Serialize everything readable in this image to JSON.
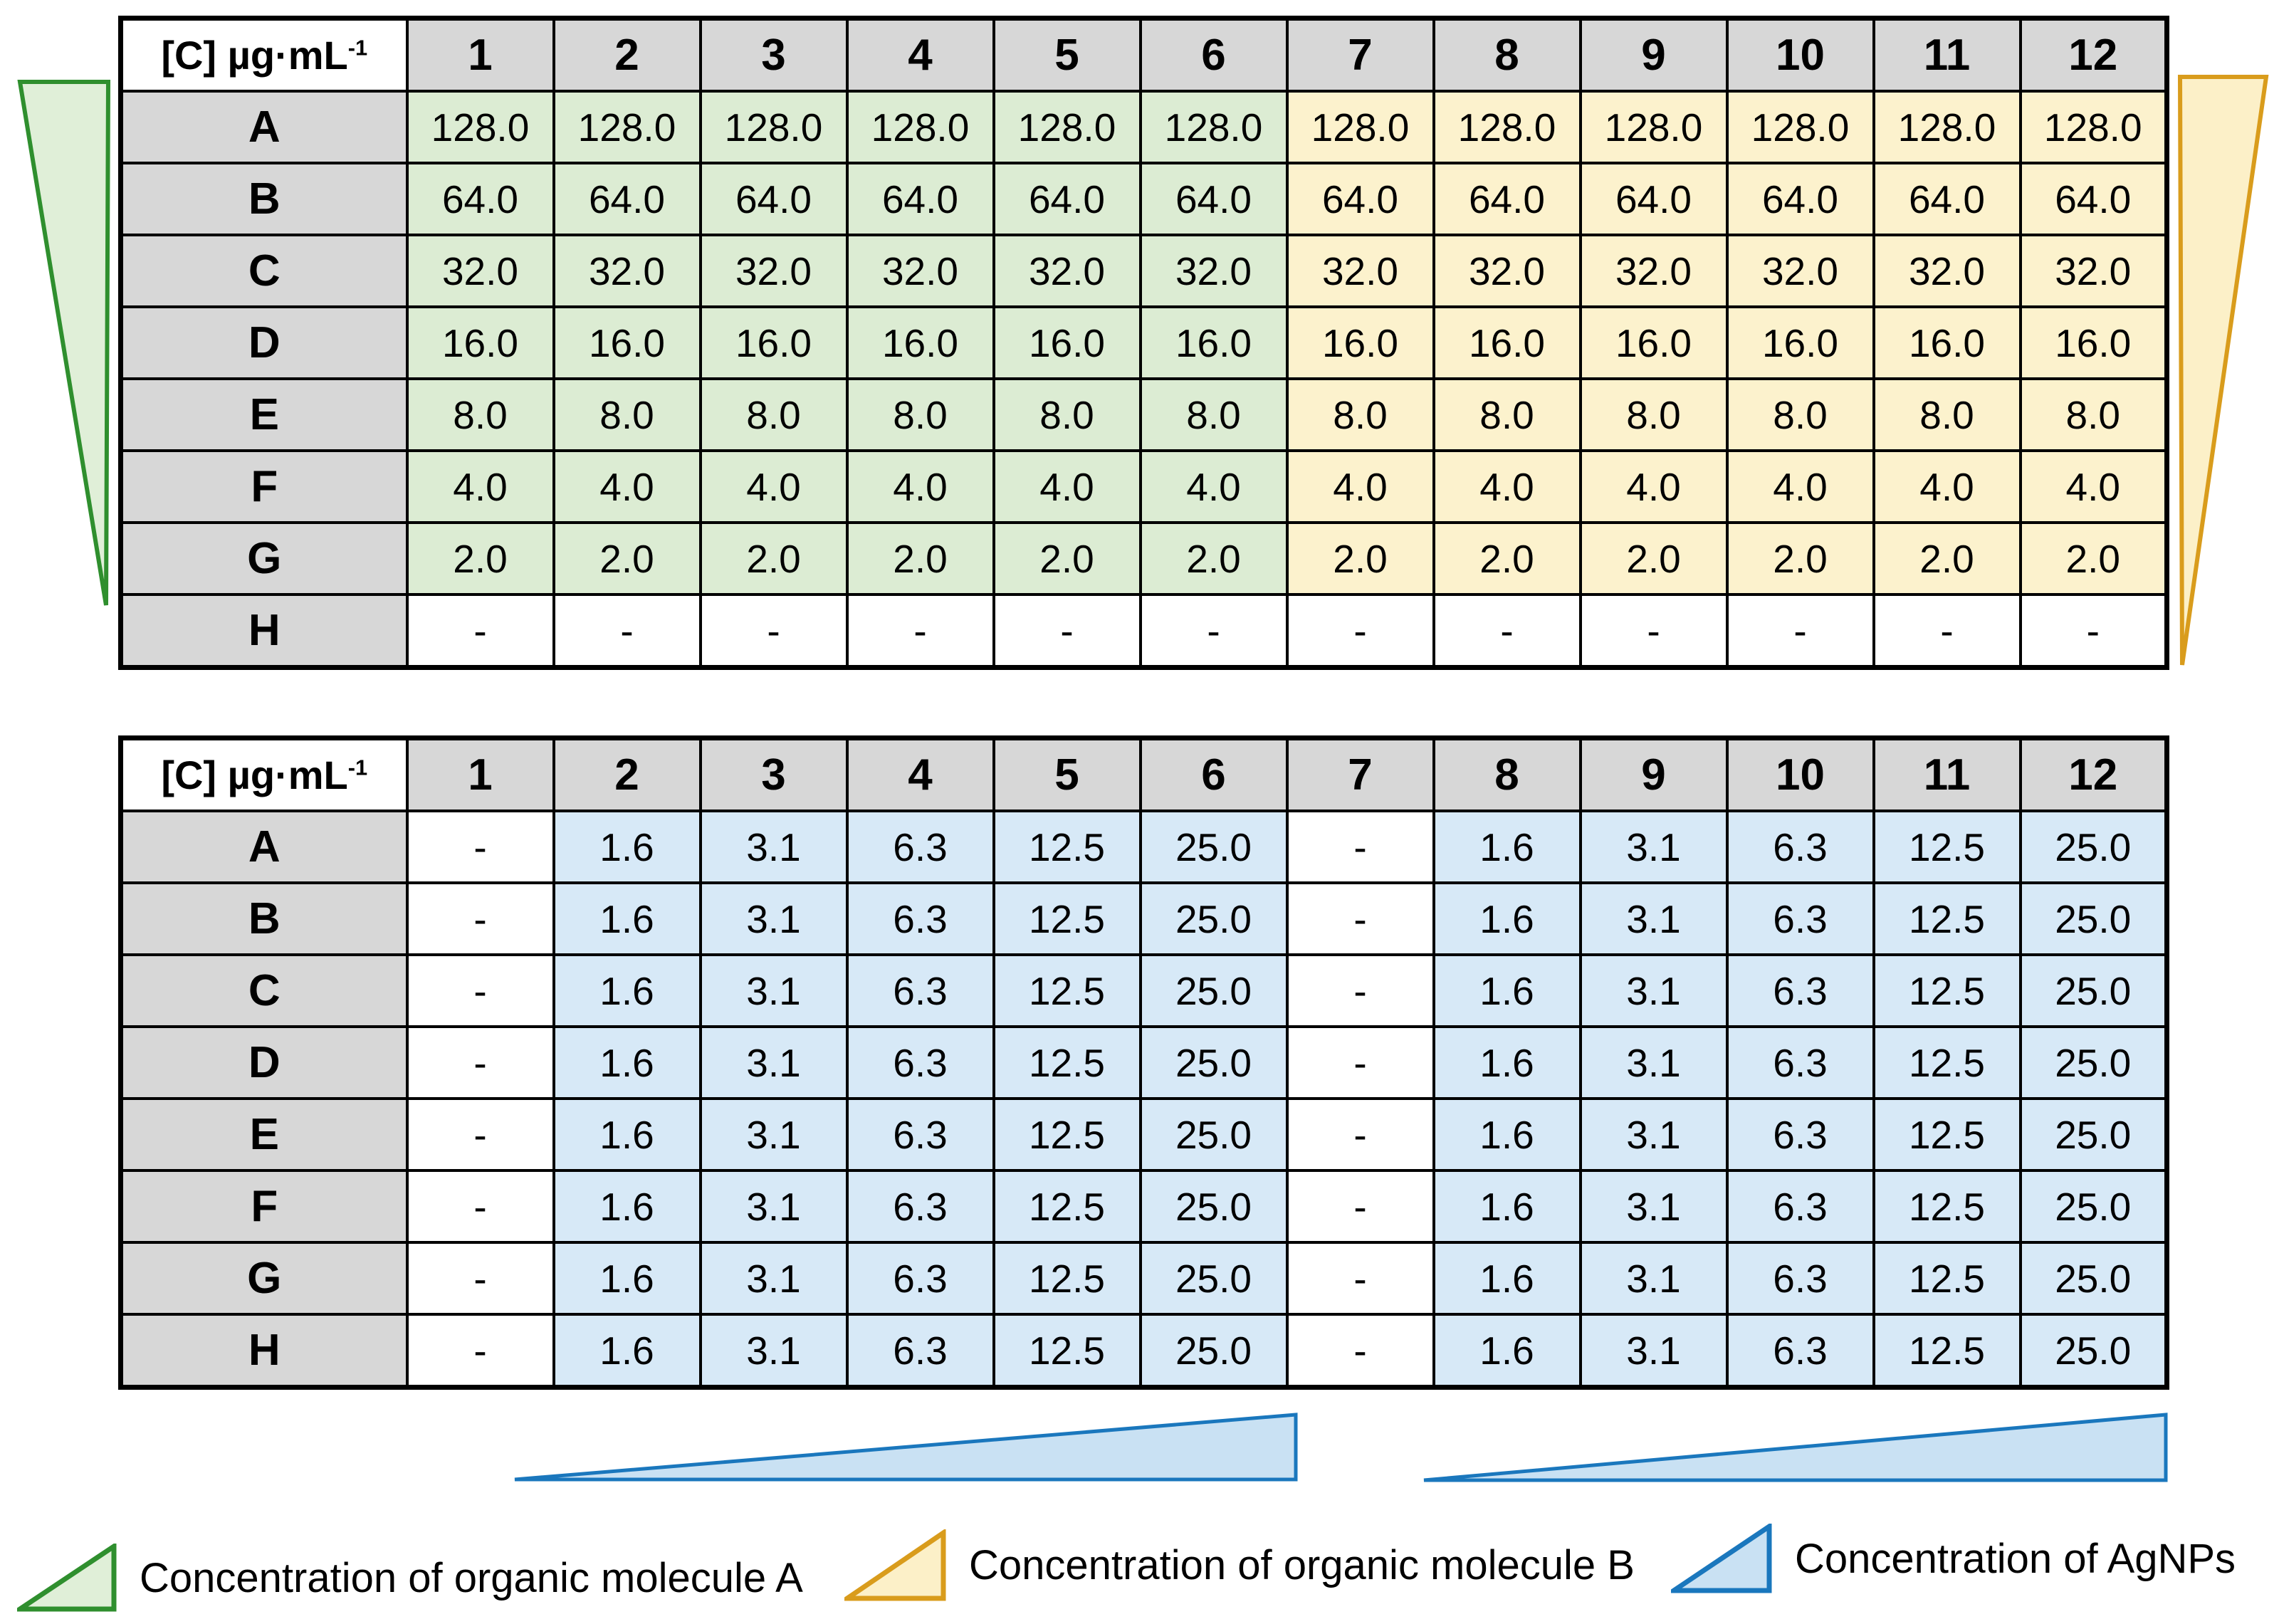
{
  "unit": {
    "text": "[C] µg·mL",
    "sup": "-1"
  },
  "columns": [
    "1",
    "2",
    "3",
    "4",
    "5",
    "6",
    "7",
    "8",
    "9",
    "10",
    "11",
    "12"
  ],
  "plates": [
    {
      "name": "top",
      "rows": [
        {
          "label": "A",
          "values": [
            "128.0",
            "128.0",
            "128.0",
            "128.0",
            "128.0",
            "128.0",
            "128.0",
            "128.0",
            "128.0",
            "128.0",
            "128.0",
            "128.0"
          ],
          "classes": [
            "g",
            "g",
            "g",
            "g",
            "g",
            "g",
            "y",
            "y",
            "y",
            "y",
            "y",
            "y"
          ]
        },
        {
          "label": "B",
          "values": [
            "64.0",
            "64.0",
            "64.0",
            "64.0",
            "64.0",
            "64.0",
            "64.0",
            "64.0",
            "64.0",
            "64.0",
            "64.0",
            "64.0"
          ],
          "classes": [
            "g",
            "g",
            "g",
            "g",
            "g",
            "g",
            "y",
            "y",
            "y",
            "y",
            "y",
            "y"
          ]
        },
        {
          "label": "C",
          "values": [
            "32.0",
            "32.0",
            "32.0",
            "32.0",
            "32.0",
            "32.0",
            "32.0",
            "32.0",
            "32.0",
            "32.0",
            "32.0",
            "32.0"
          ],
          "classes": [
            "g",
            "g",
            "g",
            "g",
            "g",
            "g",
            "y",
            "y",
            "y",
            "y",
            "y",
            "y"
          ]
        },
        {
          "label": "D",
          "values": [
            "16.0",
            "16.0",
            "16.0",
            "16.0",
            "16.0",
            "16.0",
            "16.0",
            "16.0",
            "16.0",
            "16.0",
            "16.0",
            "16.0"
          ],
          "classes": [
            "g",
            "g",
            "g",
            "g",
            "g",
            "g",
            "y",
            "y",
            "y",
            "y",
            "y",
            "y"
          ]
        },
        {
          "label": "E",
          "values": [
            "8.0",
            "8.0",
            "8.0",
            "8.0",
            "8.0",
            "8.0",
            "8.0",
            "8.0",
            "8.0",
            "8.0",
            "8.0",
            "8.0"
          ],
          "classes": [
            "g",
            "g",
            "g",
            "g",
            "g",
            "g",
            "y",
            "y",
            "y",
            "y",
            "y",
            "y"
          ]
        },
        {
          "label": "F",
          "values": [
            "4.0",
            "4.0",
            "4.0",
            "4.0",
            "4.0",
            "4.0",
            "4.0",
            "4.0",
            "4.0",
            "4.0",
            "4.0",
            "4.0"
          ],
          "classes": [
            "g",
            "g",
            "g",
            "g",
            "g",
            "g",
            "y",
            "y",
            "y",
            "y",
            "y",
            "y"
          ]
        },
        {
          "label": "G",
          "values": [
            "2.0",
            "2.0",
            "2.0",
            "2.0",
            "2.0",
            "2.0",
            "2.0",
            "2.0",
            "2.0",
            "2.0",
            "2.0",
            "2.0"
          ],
          "classes": [
            "g",
            "g",
            "g",
            "g",
            "g",
            "g",
            "y",
            "y",
            "y",
            "y",
            "y",
            "y"
          ]
        },
        {
          "label": "H",
          "values": [
            "-",
            "-",
            "-",
            "-",
            "-",
            "-",
            "-",
            "-",
            "-",
            "-",
            "-",
            "-"
          ],
          "classes": [
            "w",
            "w",
            "w",
            "w",
            "w",
            "w",
            "w",
            "w",
            "w",
            "w",
            "w",
            "w"
          ]
        }
      ]
    },
    {
      "name": "bottom",
      "rows": [
        {
          "label": "A",
          "values": [
            "-",
            "1.6",
            "3.1",
            "6.3",
            "12.5",
            "25.0",
            "-",
            "1.6",
            "3.1",
            "6.3",
            "12.5",
            "25.0"
          ],
          "classes": [
            "w",
            "b",
            "b",
            "b",
            "b",
            "b",
            "w",
            "b",
            "b",
            "b",
            "b",
            "b"
          ]
        },
        {
          "label": "B",
          "values": [
            "-",
            "1.6",
            "3.1",
            "6.3",
            "12.5",
            "25.0",
            "-",
            "1.6",
            "3.1",
            "6.3",
            "12.5",
            "25.0"
          ],
          "classes": [
            "w",
            "b",
            "b",
            "b",
            "b",
            "b",
            "w",
            "b",
            "b",
            "b",
            "b",
            "b"
          ]
        },
        {
          "label": "C",
          "values": [
            "-",
            "1.6",
            "3.1",
            "6.3",
            "12.5",
            "25.0",
            "-",
            "1.6",
            "3.1",
            "6.3",
            "12.5",
            "25.0"
          ],
          "classes": [
            "w",
            "b",
            "b",
            "b",
            "b",
            "b",
            "w",
            "b",
            "b",
            "b",
            "b",
            "b"
          ]
        },
        {
          "label": "D",
          "values": [
            "-",
            "1.6",
            "3.1",
            "6.3",
            "12.5",
            "25.0",
            "-",
            "1.6",
            "3.1",
            "6.3",
            "12.5",
            "25.0"
          ],
          "classes": [
            "w",
            "b",
            "b",
            "b",
            "b",
            "b",
            "w",
            "b",
            "b",
            "b",
            "b",
            "b"
          ]
        },
        {
          "label": "E",
          "values": [
            "-",
            "1.6",
            "3.1",
            "6.3",
            "12.5",
            "25.0",
            "-",
            "1.6",
            "3.1",
            "6.3",
            "12.5",
            "25.0"
          ],
          "classes": [
            "w",
            "b",
            "b",
            "b",
            "b",
            "b",
            "w",
            "b",
            "b",
            "b",
            "b",
            "b"
          ]
        },
        {
          "label": "F",
          "values": [
            "-",
            "1.6",
            "3.1",
            "6.3",
            "12.5",
            "25.0",
            "-",
            "1.6",
            "3.1",
            "6.3",
            "12.5",
            "25.0"
          ],
          "classes": [
            "w",
            "b",
            "b",
            "b",
            "b",
            "b",
            "w",
            "b",
            "b",
            "b",
            "b",
            "b"
          ]
        },
        {
          "label": "G",
          "values": [
            "-",
            "1.6",
            "3.1",
            "6.3",
            "12.5",
            "25.0",
            "-",
            "1.6",
            "3.1",
            "6.3",
            "12.5",
            "25.0"
          ],
          "classes": [
            "w",
            "b",
            "b",
            "b",
            "b",
            "b",
            "w",
            "b",
            "b",
            "b",
            "b",
            "b"
          ]
        },
        {
          "label": "H",
          "values": [
            "-",
            "1.6",
            "3.1",
            "6.3",
            "12.5",
            "25.0",
            "-",
            "1.6",
            "3.1",
            "6.3",
            "12.5",
            "25.0"
          ],
          "classes": [
            "w",
            "b",
            "b",
            "b",
            "b",
            "b",
            "w",
            "b",
            "b",
            "b",
            "b",
            "b"
          ]
        }
      ]
    }
  ],
  "legend": [
    {
      "icon": "green-triangle",
      "label": "Concentration of organic molecule A"
    },
    {
      "icon": "yellow-triangle",
      "label": "Concentration of organic molecule B"
    },
    {
      "icon": "blue-triangle",
      "label": "Concentration of AgNPs"
    }
  ],
  "colors": {
    "header-gray": "#d7d7d7",
    "cell-green": "#dcecd3",
    "cell-yellow": "#fcf2cd",
    "cell-blue": "#d7e9f7",
    "tri-green-fill": "#e0efd8",
    "tri-green-stroke": "#2f8f2e",
    "tri-yellow-fill": "#fcf0c8",
    "tri-yellow-stroke": "#d99c1c",
    "tri-blue-fill": "#c9e1f3",
    "tri-blue-stroke": "#1a77bd"
  }
}
